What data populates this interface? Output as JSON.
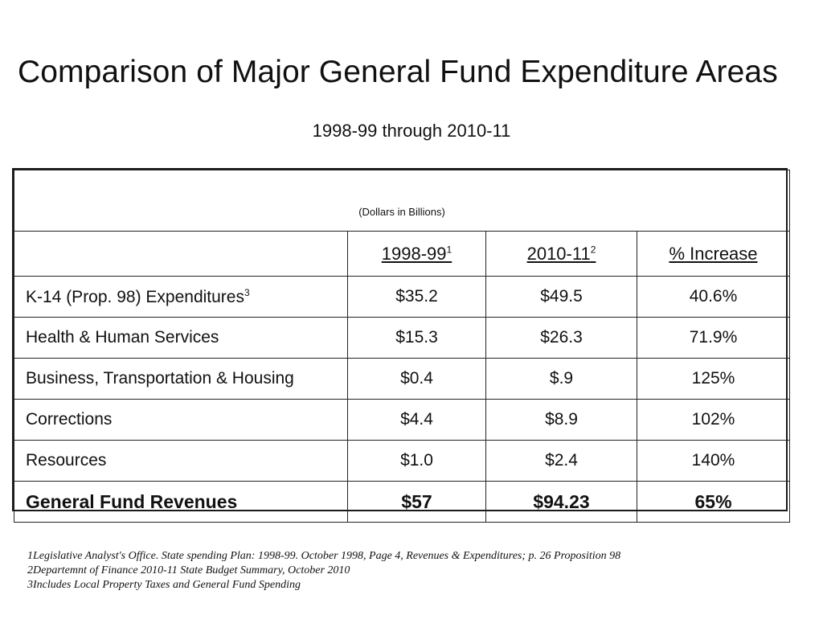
{
  "document": {
    "title": "Comparison of Major General Fund Expenditure Areas",
    "subtitle": "1998-99 through 2010-11"
  },
  "table": {
    "units_note": "(Dollars in Billions)",
    "headers": {
      "col1": "1998-99",
      "col1_footnote": "1",
      "col2": "2010-11",
      "col2_footnote": "2",
      "col3": "% Increase"
    },
    "rows": [
      {
        "label": "K-14 (Prop. 98) Expenditures",
        "label_footnote": "3",
        "v1998": "$35.2",
        "v2010": "$49.5",
        "increase": "40.6%"
      },
      {
        "label": "Health & Human Services",
        "label_footnote": "",
        "v1998": "$15.3",
        "v2010": "$26.3",
        "increase": "71.9%"
      },
      {
        "label": "Business, Transportation & Housing",
        "label_footnote": "",
        "v1998": "$0.4",
        "v2010": "$.9",
        "increase": "125%"
      },
      {
        "label": "Corrections",
        "label_footnote": "",
        "v1998": "$4.4",
        "v2010": "$8.9",
        "increase": "102%"
      },
      {
        "label": "Resources",
        "label_footnote": "",
        "v1998": "$1.0",
        "v2010": "$2.4",
        "increase": "140%"
      }
    ],
    "total": {
      "label": "General Fund Revenues",
      "v1998": "$57",
      "v2010": "$94.23",
      "increase": "65%"
    }
  },
  "footnotes": [
    "1Legislative Analyst's Office. State spending Plan: 1998-99. October 1998, Page 4, Revenues & Expenditures; p. 26 Proposition 98",
    "2Departemnt of Finance 2010-11 State Budget Summary, October 2010",
    "3Includes Local Property Taxes and General Fund Spending"
  ]
}
